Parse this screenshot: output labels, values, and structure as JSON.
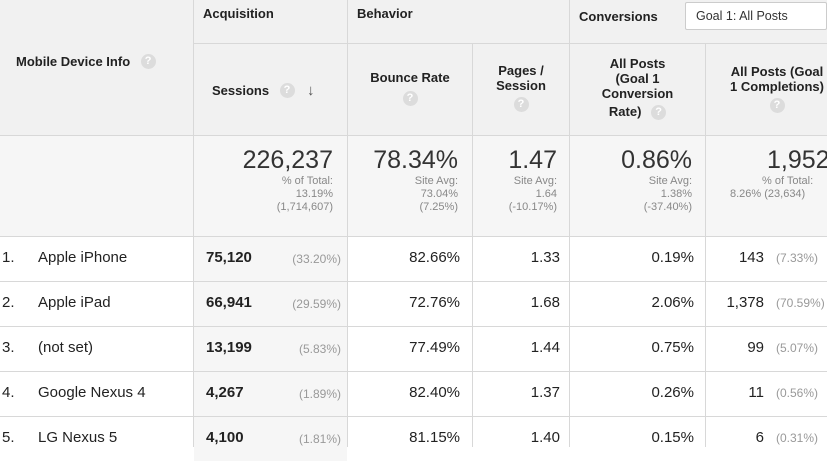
{
  "header": {
    "dimension_label": "Mobile Device Info",
    "groups": {
      "acquisition": "Acquisition",
      "behavior": "Behavior",
      "conversions": "Conversions"
    },
    "goal_select": "Goal 1: All Posts",
    "columns": {
      "sessions": "Sessions",
      "bounce_rate": "Bounce Rate",
      "pages_session": [
        "Pages /",
        "Session"
      ],
      "conv_rate": [
        "All Posts",
        "(Goal 1",
        "Conversion",
        "Rate)"
      ],
      "completions": [
        "All Posts (Goal",
        "1 Completions)"
      ]
    },
    "help_glyph": "?",
    "sort_glyph": "↓"
  },
  "totals": {
    "sessions": {
      "value": "226,237",
      "lines": [
        "% of Total:",
        "13.19%",
        "(1,714,607)"
      ]
    },
    "bounce_rate": {
      "value": "78.34%",
      "lines": [
        "Site Avg:",
        "73.04%",
        "(7.25%)"
      ]
    },
    "pages_session": {
      "value": "1.47",
      "lines": [
        "Site Avg:",
        "1.64",
        "(-10.17%)"
      ]
    },
    "conv_rate": {
      "value": "0.86%",
      "lines": [
        "Site Avg:",
        "1.38%",
        "(-37.40%)"
      ]
    },
    "completions": {
      "value": "1,952",
      "lines": [
        "% of Total:",
        "8.26% (23,634)"
      ]
    }
  },
  "rows": [
    {
      "index": "1.",
      "device": "Apple iPhone",
      "sessions": "75,120",
      "sessions_pct": "(33.20%)",
      "bounce": "82.66%",
      "pages": "1.33",
      "conv": "0.19%",
      "comp": "143",
      "comp_pct": "(7.33%)"
    },
    {
      "index": "2.",
      "device": "Apple iPad",
      "sessions": "66,941",
      "sessions_pct": "(29.59%)",
      "bounce": "72.76%",
      "pages": "1.68",
      "conv": "2.06%",
      "comp": "1,378",
      "comp_pct": "(70.59%)"
    },
    {
      "index": "3.",
      "device": "(not set)",
      "sessions": "13,199",
      "sessions_pct": "(5.83%)",
      "bounce": "77.49%",
      "pages": "1.44",
      "conv": "0.75%",
      "comp": "99",
      "comp_pct": "(5.07%)"
    },
    {
      "index": "4.",
      "device": "Google Nexus 4",
      "sessions": "4,267",
      "sessions_pct": "(1.89%)",
      "bounce": "82.40%",
      "pages": "1.37",
      "conv": "0.26%",
      "comp": "11",
      "comp_pct": "(0.56%)"
    },
    {
      "index": "5.",
      "device": "LG Nexus 5",
      "sessions": "4,100",
      "sessions_pct": "(1.81%)",
      "bounce": "81.15%",
      "pages": "1.40",
      "conv": "0.15%",
      "comp": "6",
      "comp_pct": "(0.31%)"
    }
  ]
}
